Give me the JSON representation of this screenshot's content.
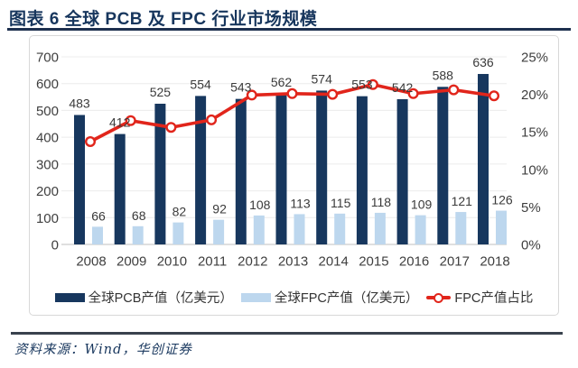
{
  "header": {
    "title": "图表 6  全球 PCB 及 FPC 行业市场规模"
  },
  "footer": {
    "source": "资料来源：Wind，华创证券"
  },
  "colors": {
    "accent_navy": "#17365D",
    "pcb_bar": "#17375E",
    "fpc_bar": "#BDD7EE",
    "line_red": "#E1251B",
    "grid": "#ECECEC",
    "axis_line": "#BFBFBF",
    "tick_text": "#3f3f3f"
  },
  "chart_data": {
    "type": "combo: clustered bar + line",
    "title": "全球 PCB 及 FPC 行业市场规模",
    "categories": [
      "2008",
      "2009",
      "2010",
      "2011",
      "2012",
      "2013",
      "2014",
      "2015",
      "2016",
      "2017",
      "2018"
    ],
    "series": [
      {
        "name": "全球PCB产值（亿美元）",
        "type": "bar",
        "axis": "left",
        "color": "#17375E",
        "values": [
          483,
          412,
          525,
          554,
          543,
          562,
          574,
          553,
          542,
          588,
          636
        ]
      },
      {
        "name": "全球FPC产值（亿美元）",
        "type": "bar",
        "axis": "left",
        "color": "#BDD7EE",
        "values": [
          66,
          68,
          82,
          92,
          108,
          113,
          115,
          118,
          109,
          121,
          126
        ]
      },
      {
        "name": "FPC产值占比",
        "type": "line",
        "axis": "right",
        "color": "#E1251B",
        "values_pct": [
          13.7,
          16.5,
          15.6,
          16.6,
          19.9,
          20.1,
          20.0,
          21.3,
          20.1,
          20.6,
          19.8
        ]
      }
    ],
    "left_axis": {
      "min": 0,
      "max": 700,
      "step": 100,
      "ticks": [
        "0",
        "100",
        "200",
        "300",
        "400",
        "500",
        "600",
        "700"
      ]
    },
    "right_axis": {
      "min": 0,
      "max": 25,
      "step": 5,
      "ticks": [
        "0%",
        "5%",
        "10%",
        "15%",
        "20%",
        "25%"
      ]
    },
    "grid": true,
    "legend_position": "bottom",
    "data_labels": true
  }
}
